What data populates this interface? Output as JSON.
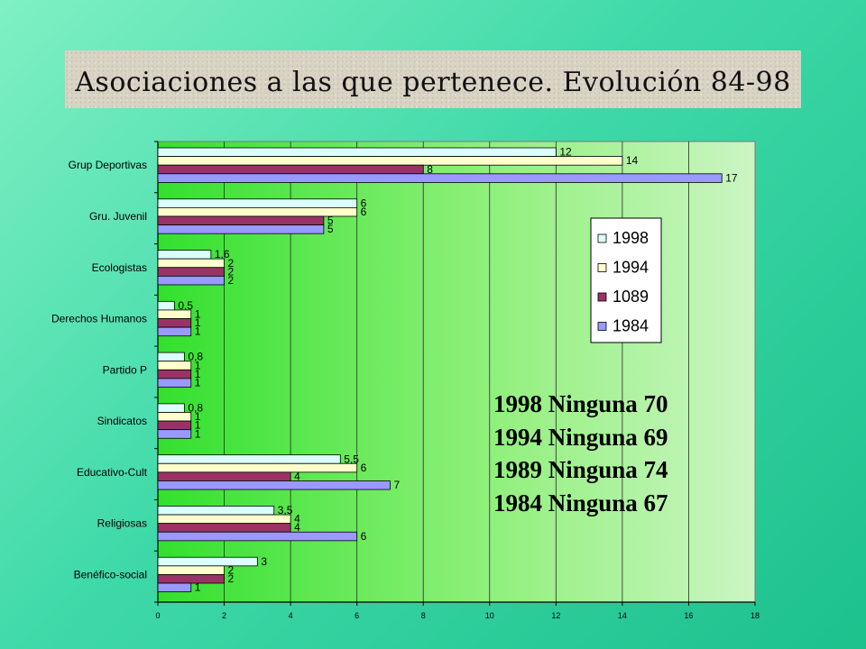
{
  "title": "Asociaciones a las que pertenece. Evolución 84-98",
  "notes": [
    "1998 Ninguna 70",
    "1994 Ninguna 69",
    "1989 Ninguna 74",
    "1984 Ninguna 67"
  ],
  "chart_data": {
    "type": "bar",
    "orientation": "horizontal",
    "categories": [
      "Grup Deportivas",
      "Gru. Juvenil",
      "Ecologistas",
      "Derechos Humanos",
      "Partido P",
      "Sindicatos",
      "Educativo-Cult",
      "Religiosas",
      "Benéfico-social"
    ],
    "series": [
      {
        "name": "1998",
        "values": [
          12,
          6,
          1.6,
          0.5,
          0.8,
          0.8,
          5.5,
          3.5,
          3
        ],
        "labels": [
          "12",
          "6",
          "1,6",
          "0,5",
          "0,8",
          "0,8",
          "5,5",
          "3,5",
          "3"
        ],
        "color": "#dcffff"
      },
      {
        "name": "1994",
        "values": [
          14,
          6,
          2,
          1,
          1,
          1,
          6,
          4,
          2
        ],
        "labels": [
          "14",
          "6",
          "2",
          "1",
          "1",
          "1",
          "6",
          "4",
          "2"
        ],
        "color": "#ffffcc"
      },
      {
        "name": "1089",
        "values": [
          8,
          5,
          2,
          1,
          1,
          1,
          4,
          4,
          2
        ],
        "labels": [
          "8",
          "5",
          "2",
          "1",
          "1",
          "1",
          "4",
          "4",
          "2"
        ],
        "color": "#993366"
      },
      {
        "name": "1984",
        "values": [
          17,
          5,
          2,
          1,
          1,
          1,
          7,
          6,
          1
        ],
        "labels": [
          "17",
          "5",
          "2",
          "1",
          "1",
          "1",
          "7",
          "6",
          "1"
        ],
        "color": "#9999ff"
      }
    ],
    "x_ticks": [
      0,
      2,
      4,
      6,
      8,
      10,
      12,
      14,
      16,
      18
    ],
    "xlim": [
      0,
      18
    ],
    "grid": "vertical",
    "legend_position": "right",
    "plot_background": "green-gradient"
  }
}
